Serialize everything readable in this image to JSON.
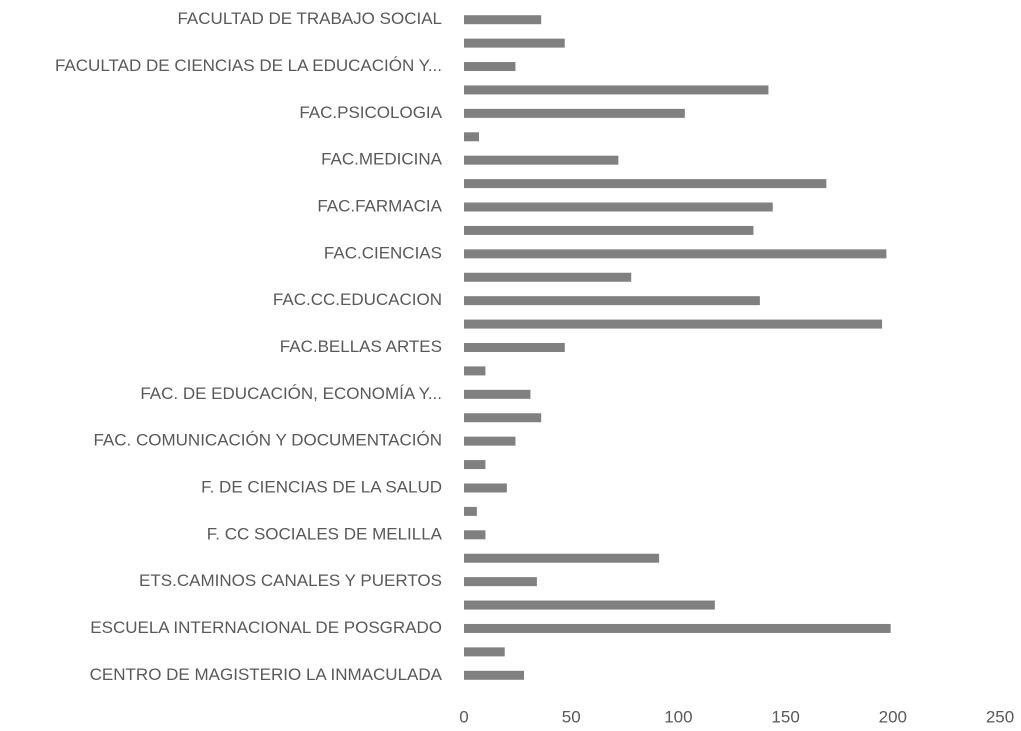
{
  "chart_data": {
    "type": "bar",
    "orientation": "horizontal",
    "categories": [
      "CENTRO DE MAGISTERIO LA INMACULADA",
      null,
      "ESCUELA INTERNACIONAL DE POSGRADO",
      null,
      "ETS.CAMINOS CANALES Y PUERTOS",
      null,
      "F. CC SOCIALES DE MELILLA",
      null,
      "F. DE CIENCIAS DE LA SALUD",
      null,
      "FAC. COMUNICACIÓN Y DOCUMENTACIÓN",
      null,
      "FAC. DE EDUCACIÓN, ECONOMÍA Y...",
      null,
      "FAC.BELLAS ARTES",
      null,
      "FAC.CC.EDUCACION",
      null,
      "FAC.CIENCIAS",
      null,
      "FAC.FARMACIA",
      null,
      "FAC.MEDICINA",
      null,
      "FAC.PSICOLOGIA",
      null,
      "FACULTAD DE CIENCIAS DE LA EDUCACIÓN Y...",
      null,
      "FACULTAD DE TRABAJO SOCIAL"
    ],
    "values": [
      28,
      19,
      199,
      117,
      34,
      91,
      10,
      6,
      20,
      10,
      24,
      36,
      31,
      10,
      47,
      195,
      138,
      78,
      197,
      135,
      144,
      169,
      72,
      7,
      103,
      142,
      24,
      47,
      36
    ],
    "color": "#808080",
    "xlim": [
      0,
      250
    ],
    "xticks": [
      0,
      50,
      100,
      150,
      200,
      250
    ],
    "grid": false
  }
}
